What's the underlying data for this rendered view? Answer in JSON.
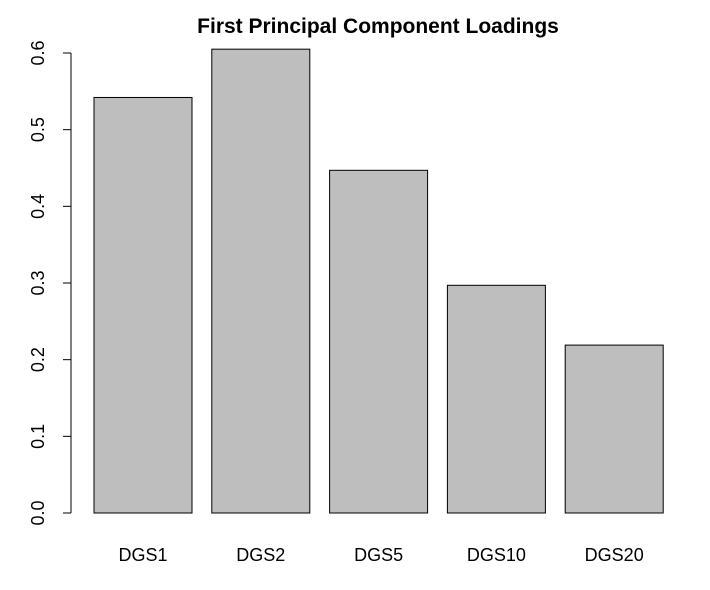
{
  "chart_data": {
    "type": "bar",
    "title": "First Principal Component Loadings",
    "categories": [
      "DGS1",
      "DGS2",
      "DGS5",
      "DGS10",
      "DGS20"
    ],
    "values": [
      0.542,
      0.605,
      0.447,
      0.297,
      0.219
    ],
    "ylim": [
      0,
      0.6
    ],
    "yticks": [
      "0.0",
      "0.1",
      "0.2",
      "0.3",
      "0.4",
      "0.5",
      "0.6"
    ],
    "bar_color": "#bebebe",
    "grid": false,
    "xlabel": "",
    "ylabel": ""
  }
}
